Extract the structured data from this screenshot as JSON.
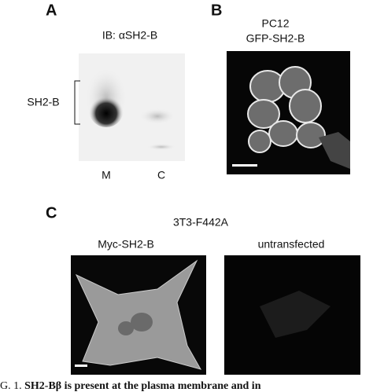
{
  "panel_a": {
    "label": "A",
    "antibody": "IB: αSH2-B",
    "band_label": "SH2-B",
    "lanes": [
      "M",
      "C"
    ]
  },
  "panel_b": {
    "label": "B",
    "cell_line": "PC12",
    "construct": "GFP-SH2-B"
  },
  "panel_c": {
    "label": "C",
    "cell_line": "3T3-F442A",
    "conditions": [
      "Myc-SH2-B",
      "untransfected"
    ]
  },
  "caption": {
    "prefix": "G. 1.",
    "text": "SH2-Bβ is present at the plasma membrane and in"
  }
}
